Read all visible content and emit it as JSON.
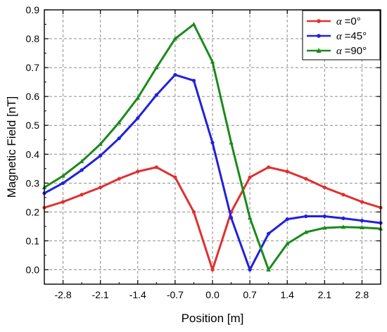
{
  "chart_data": {
    "type": "line",
    "title": "",
    "xlabel": "Position [m]",
    "ylabel": "Magnetic Field [nT]",
    "xlim": [
      -3.15,
      3.15
    ],
    "ylim": [
      -0.05,
      0.9
    ],
    "x_ticks": [
      -2.8,
      -2.1,
      -1.4,
      -0.7,
      0.0,
      0.7,
      1.4,
      2.1,
      2.8
    ],
    "x_tick_labels": [
      "-2.8",
      "-2.1",
      "-1.4",
      "-0.7",
      "0.0",
      "0.7",
      "1.4",
      "2.1",
      "2.8"
    ],
    "y_ticks": [
      0.0,
      0.1,
      0.2,
      0.3,
      0.4,
      0.5,
      0.6,
      0.7,
      0.8,
      0.9
    ],
    "y_tick_labels": [
      "0.0",
      "0.1",
      "0.2",
      "0.3",
      "0.4",
      "0.5",
      "0.6",
      "0.7",
      "0.8",
      "0.9"
    ],
    "grid": true,
    "legend_position": "top-right",
    "x": [
      -3.15,
      -2.8,
      -2.45,
      -2.1,
      -1.75,
      -1.4,
      -1.05,
      -0.7,
      -0.35,
      0.0,
      0.35,
      0.7,
      1.05,
      1.4,
      1.75,
      2.1,
      2.45,
      2.8,
      3.15
    ],
    "series": [
      {
        "name": "=0°",
        "alpha_symbol": "α",
        "color": "#e03030",
        "marker": "circle",
        "values": [
          0.215,
          0.235,
          0.26,
          0.285,
          0.315,
          0.34,
          0.355,
          0.32,
          0.2,
          0.0,
          0.2,
          0.32,
          0.355,
          0.34,
          0.315,
          0.285,
          0.26,
          0.235,
          0.215
        ]
      },
      {
        "name": "=45°",
        "alpha_symbol": "α",
        "color": "#2020e0",
        "marker": "circle",
        "values": [
          0.265,
          0.3,
          0.345,
          0.395,
          0.455,
          0.525,
          0.605,
          0.675,
          0.655,
          0.44,
          0.18,
          0.0,
          0.125,
          0.175,
          0.185,
          0.185,
          0.178,
          0.17,
          0.162
        ]
      },
      {
        "name": "=90°",
        "alpha_symbol": "α",
        "color": "#1a8a1a",
        "marker": "triangle",
        "values": [
          0.285,
          0.325,
          0.375,
          0.435,
          0.51,
          0.595,
          0.7,
          0.8,
          0.85,
          0.72,
          0.44,
          0.18,
          0.0,
          0.09,
          0.13,
          0.145,
          0.148,
          0.146,
          0.142
        ]
      }
    ]
  }
}
